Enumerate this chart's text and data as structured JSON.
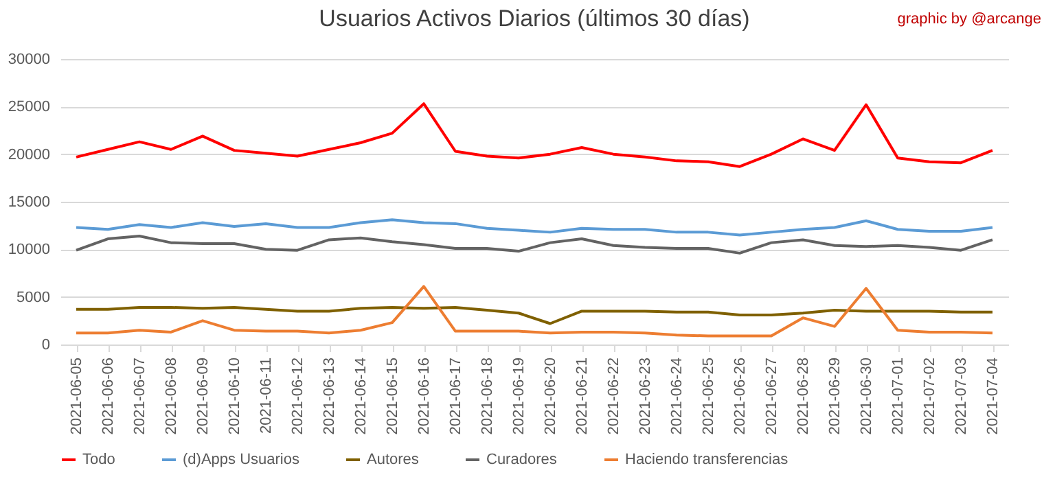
{
  "chart_data": {
    "type": "line",
    "title": "Usuarios Activos Diarios (últimos 30 días)",
    "annotations": [
      "graphic by @arcange"
    ],
    "categories": [
      "2021-06-05",
      "2021-06-06",
      "2021-06-07",
      "2021-06-08",
      "2021-06-09",
      "2021-06-10",
      "2021-06-11",
      "2021-06-12",
      "2021-06-13",
      "2021-06-14",
      "2021-06-15",
      "2021-06-16",
      "2021-06-17",
      "2021-06-18",
      "2021-06-19",
      "2021-06-20",
      "2021-06-21",
      "2021-06-22",
      "2021-06-23",
      "2021-06-24",
      "2021-06-25",
      "2021-06-26",
      "2021-06-27",
      "2021-06-28",
      "2021-06-29",
      "2021-06-30",
      "2021-07-01",
      "2021-07-02",
      "2021-07-03",
      "2021-07-04"
    ],
    "series": [
      {
        "name": "Todo",
        "color": "#ff0000",
        "values": [
          19700,
          20500,
          21300,
          20500,
          21900,
          20400,
          20100,
          19800,
          20500,
          21200,
          22200,
          25300,
          20300,
          19800,
          19600,
          20000,
          20700,
          20000,
          19700,
          19300,
          19200,
          18700,
          20000,
          21600,
          20400,
          25200,
          19600,
          19200,
          19100,
          20400
        ]
      },
      {
        "name": "(d)Apps Usuarios",
        "color": "#5b9bd5",
        "values": [
          12300,
          12100,
          12600,
          12300,
          12800,
          12400,
          12700,
          12300,
          12300,
          12800,
          13100,
          12800,
          12700,
          12200,
          12000,
          11800,
          12200,
          12100,
          12100,
          11800,
          11800,
          11500,
          11800,
          12100,
          12300,
          13000,
          12100,
          11900,
          11900,
          12300
        ]
      },
      {
        "name": "Autores",
        "color": "#7f6000",
        "values": [
          3700,
          3700,
          3900,
          3900,
          3800,
          3900,
          3700,
          3500,
          3500,
          3800,
          3900,
          3800,
          3900,
          3600,
          3300,
          2200,
          3500,
          3500,
          3500,
          3400,
          3400,
          3100,
          3100,
          3300,
          3600,
          3500,
          3500,
          3500,
          3400,
          3400
        ]
      },
      {
        "name": "Curadores",
        "color": "#636363",
        "values": [
          9900,
          11100,
          11400,
          10700,
          10600,
          10600,
          10000,
          9900,
          11000,
          11200,
          10800,
          10500,
          10100,
          10100,
          9800,
          10700,
          11100,
          10400,
          10200,
          10100,
          10100,
          9600,
          10700,
          11000,
          10400,
          10300,
          10400,
          10200,
          9900,
          11000
        ]
      },
      {
        "name": "Haciendo transferencias",
        "color": "#ed7d31",
        "values": [
          1200,
          1200,
          1500,
          1300,
          2500,
          1500,
          1400,
          1400,
          1200,
          1500,
          2300,
          6100,
          1400,
          1400,
          1400,
          1200,
          1300,
          1300,
          1200,
          1000,
          900,
          900,
          900,
          2800,
          1900,
          5900,
          1500,
          1300,
          1300,
          1200
        ]
      }
    ],
    "ylim": [
      0,
      30000
    ],
    "yticks": [
      0,
      5000,
      10000,
      15000,
      20000,
      25000,
      30000
    ],
    "grid": "y",
    "legend": "bottom",
    "marker": "none",
    "line_style": "solid"
  }
}
